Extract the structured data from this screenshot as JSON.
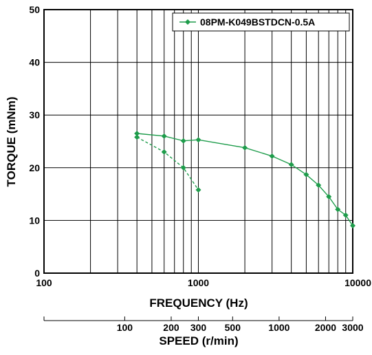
{
  "chart_data": {
    "type": "line",
    "title": "",
    "xlabel": "FREQUENCY (Hz)",
    "ylabel": "TORQUE (mNm)",
    "x_scale": "log",
    "xlim": [
      100,
      10000
    ],
    "ylim": [
      0,
      50
    ],
    "x_ticks": [
      100,
      1000,
      10000
    ],
    "x_tick_labels": [
      "100",
      "1000",
      "10000"
    ],
    "y_ticks": [
      0,
      10,
      20,
      30,
      40,
      50
    ],
    "y_tick_labels": [
      "0",
      "10",
      "20",
      "30",
      "40",
      "50"
    ],
    "grid": true,
    "legend_position": "top-right",
    "secondary_axis": {
      "label": "SPEED (r/min)",
      "ticks": [
        {
          "label": "100",
          "frequency": 333.3
        },
        {
          "label": "200",
          "frequency": 666.7
        },
        {
          "label": "300",
          "frequency": 1000
        },
        {
          "label": "500",
          "frequency": 1666.7
        },
        {
          "label": "1000",
          "frequency": 3333.3
        },
        {
          "label": "2000",
          "frequency": 6666.7
        },
        {
          "label": "3000",
          "frequency": 10000
        }
      ]
    },
    "series": [
      {
        "name": "08PM-K049BSTDCN-0.5A",
        "color": "#1e9c4b",
        "line_style": "solid",
        "marker": "diamond",
        "in_legend": true,
        "x": [
          400,
          600,
          800,
          1000,
          2000,
          3000,
          4000,
          5000,
          6000,
          7000,
          8000,
          9000,
          10000
        ],
        "y": [
          26.5,
          26.0,
          25.1,
          25.3,
          23.8,
          22.2,
          20.6,
          18.7,
          16.7,
          14.5,
          12.1,
          11.0,
          9.0
        ]
      },
      {
        "name": "",
        "color": "#1e9c4b",
        "line_style": "dashed",
        "marker": "diamond",
        "in_legend": false,
        "x": [
          400,
          600,
          800,
          1000
        ],
        "y": [
          25.8,
          23.0,
          20.0,
          15.8
        ]
      }
    ]
  }
}
